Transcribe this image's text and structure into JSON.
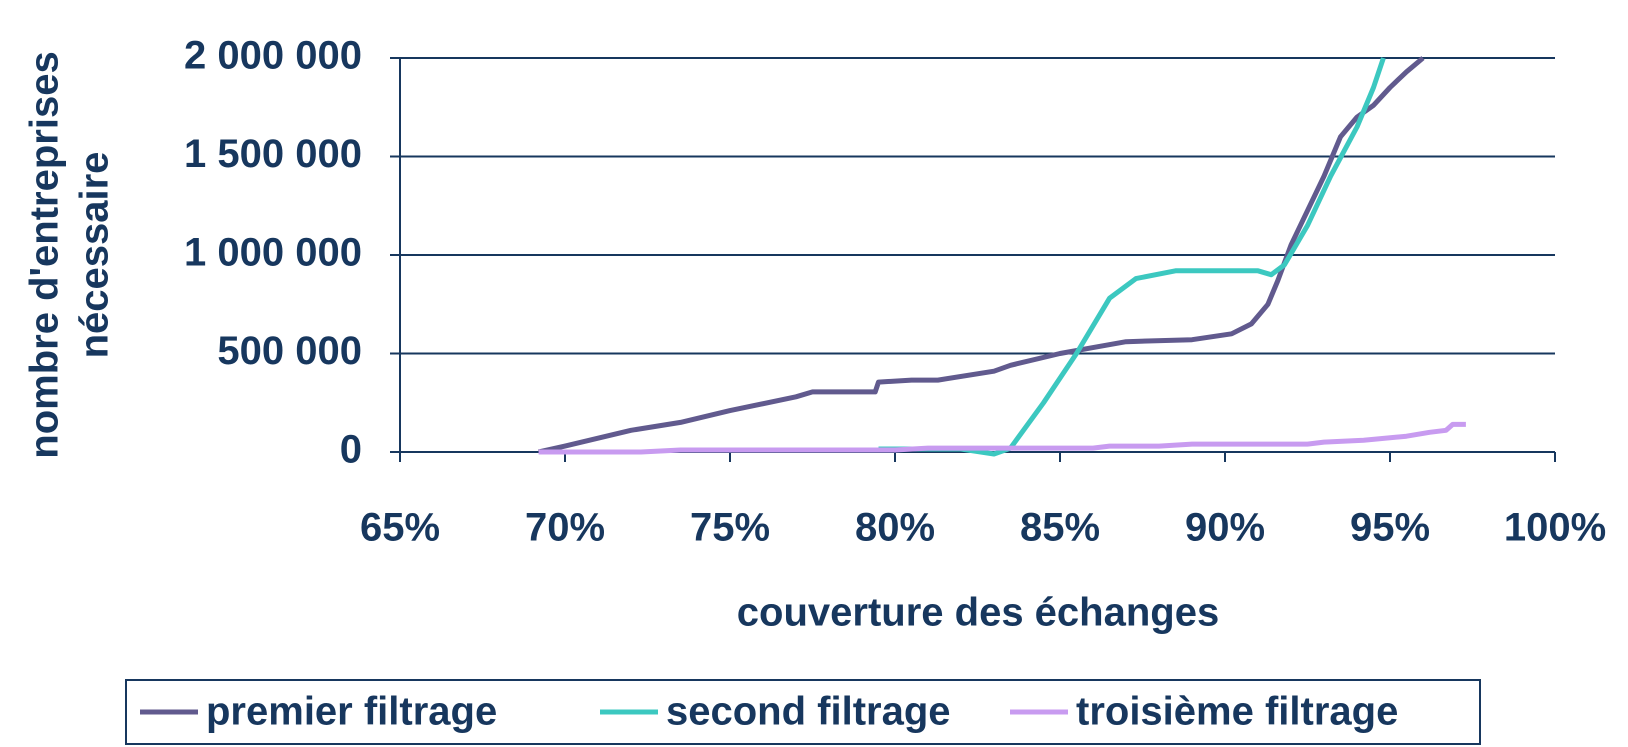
{
  "chart_data": {
    "type": "line",
    "xlabel": "couverture des échanges",
    "ylabel": [
      "nombre d'entreprises",
      "nécessaire"
    ],
    "xlim": [
      65,
      100
    ],
    "xticks": [
      {
        "value": 65,
        "label": "65%"
      },
      {
        "value": 70,
        "label": "70%"
      },
      {
        "value": 75,
        "label": "75%"
      },
      {
        "value": 80,
        "label": "80%"
      },
      {
        "value": 85,
        "label": "85%"
      },
      {
        "value": 90,
        "label": "90%"
      },
      {
        "value": 95,
        "label": "95%"
      },
      {
        "value": 100,
        "label": "100%"
      }
    ],
    "ylim": [
      0,
      2000000
    ],
    "yticks": [
      0,
      {
        "value": 500000,
        "label": "500 000"
      },
      {
        "value": 1000000,
        "label": "1 000 000"
      },
      {
        "value": 1500000,
        "label": "1 500 000"
      },
      {
        "value": 2000000,
        "label": "2 000 000"
      }
    ],
    "grid": true,
    "legend": "bottom",
    "series": [
      {
        "name": "premier filtrage",
        "color": "#615A8E",
        "x": [
          69.2,
          70,
          72,
          73.5,
          75,
          77,
          77.5,
          79.4,
          79.5,
          80.5,
          81.3,
          83,
          83.5,
          85,
          86,
          87,
          89,
          90.2,
          90.8,
          91.3,
          91.6,
          92,
          93,
          93.5,
          94,
          94.5,
          95,
          95.5,
          96
        ],
        "values": [
          0,
          30000,
          110000,
          150000,
          210000,
          280000,
          305000,
          305000,
          355000,
          365000,
          365000,
          410000,
          440000,
          500000,
          530000,
          560000,
          570000,
          600000,
          650000,
          750000,
          870000,
          1050000,
          1400000,
          1600000,
          1700000,
          1760000,
          1850000,
          1930000,
          2000000
        ]
      },
      {
        "name": "second filtrage",
        "color": "#3CC8C0",
        "x": [
          79.5,
          82,
          83,
          83.5,
          84.5,
          85.5,
          86.5,
          87.3,
          88.5,
          91,
          91.4,
          91.8,
          92.5,
          93.2,
          94,
          94.5,
          94.8
        ],
        "values": [
          15000,
          15000,
          -10000,
          20000,
          250000,
          500000,
          780000,
          880000,
          920000,
          920000,
          900000,
          950000,
          1150000,
          1400000,
          1650000,
          1850000,
          2000000
        ]
      },
      {
        "name": "troisième filtrage",
        "color": "#C89BF0",
        "x": [
          69.2,
          72.3,
          73.5,
          80,
          81,
          86,
          86.5,
          88,
          89,
          92.5,
          93,
          94.2,
          95.5,
          96.2,
          96.7,
          96.9,
          97.3
        ],
        "values": [
          0,
          0,
          10000,
          10000,
          20000,
          20000,
          30000,
          30000,
          40000,
          40000,
          50000,
          60000,
          80000,
          100000,
          110000,
          140000,
          140000
        ]
      }
    ]
  }
}
